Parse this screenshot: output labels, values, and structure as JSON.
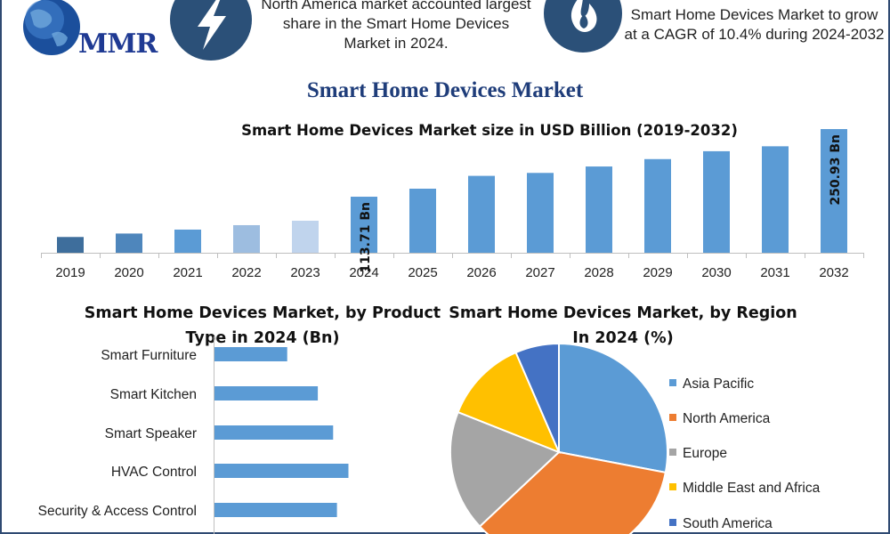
{
  "logo": {
    "text": "MMR"
  },
  "stats": {
    "north_america": "North America market accounted largest share in the Smart Home Devices Market in 2024.",
    "cagr": "Smart Home Devices Market to grow at a CAGR of 10.4% during 2024-2032"
  },
  "main_title": "Smart Home Devices Market",
  "colors": {
    "title_blue": "#1f3d7a",
    "bar_blue": "#5b9bd5",
    "icon_circle": "#2b5078"
  },
  "icons": [
    "globe-icon",
    "lightning-icon",
    "flame-icon"
  ],
  "chart_data": [
    {
      "type": "bar",
      "title": "Smart Home Devices Market size in USD Billion (2019-2032)",
      "categories": [
        "2019",
        "2020",
        "2021",
        "2022",
        "2023",
        "2024",
        "2025",
        "2026",
        "2027",
        "2028",
        "2029",
        "2030",
        "2031",
        "2032"
      ],
      "values": [
        32,
        39,
        47,
        56,
        65,
        113.71,
        130,
        156,
        162,
        175,
        190,
        206,
        216,
        250.93
      ],
      "bar_colors": [
        "#3e6e9c",
        "#4e86bc",
        "#5b9bd5",
        "#9dbde0",
        "#c0d4ed",
        "#5b9bd5",
        "#5b9bd5",
        "#5b9bd5",
        "#5b9bd5",
        "#5b9bd5",
        "#5b9bd5",
        "#5b9bd5",
        "#5b9bd5",
        "#5b9bd5"
      ],
      "data_labels": {
        "2024": "113.71 Bn",
        "2032": "250.93 Bn"
      },
      "ylim": [
        0,
        260
      ],
      "grid": false,
      "xlabel": "",
      "ylabel": ""
    },
    {
      "type": "bar",
      "orientation": "horizontal",
      "title": "Smart Home Devices Market, by Product Type in 2024 (Bn)",
      "categories": [
        "Smart Furniture",
        "Smart Kitchen",
        "Smart Speaker",
        "HVAC Control",
        "Security & Access Control"
      ],
      "values": [
        9.5,
        13.5,
        15.5,
        17.5,
        16
      ],
      "xlim": [
        0,
        20
      ],
      "color": "#5b9bd5",
      "grid": false
    },
    {
      "type": "pie",
      "title": "Smart Home Devices Market, by Region In 2024 (%)",
      "labels": [
        "Asia Pacific",
        "North America",
        "Europe",
        "Middle East and Africa",
        "South America"
      ],
      "values": [
        28,
        35,
        18,
        12.5,
        6.5
      ],
      "colors": [
        "#5b9bd5",
        "#ed7d31",
        "#a5a5a5",
        "#ffc000",
        "#4472c4"
      ],
      "legend": "right"
    }
  ]
}
